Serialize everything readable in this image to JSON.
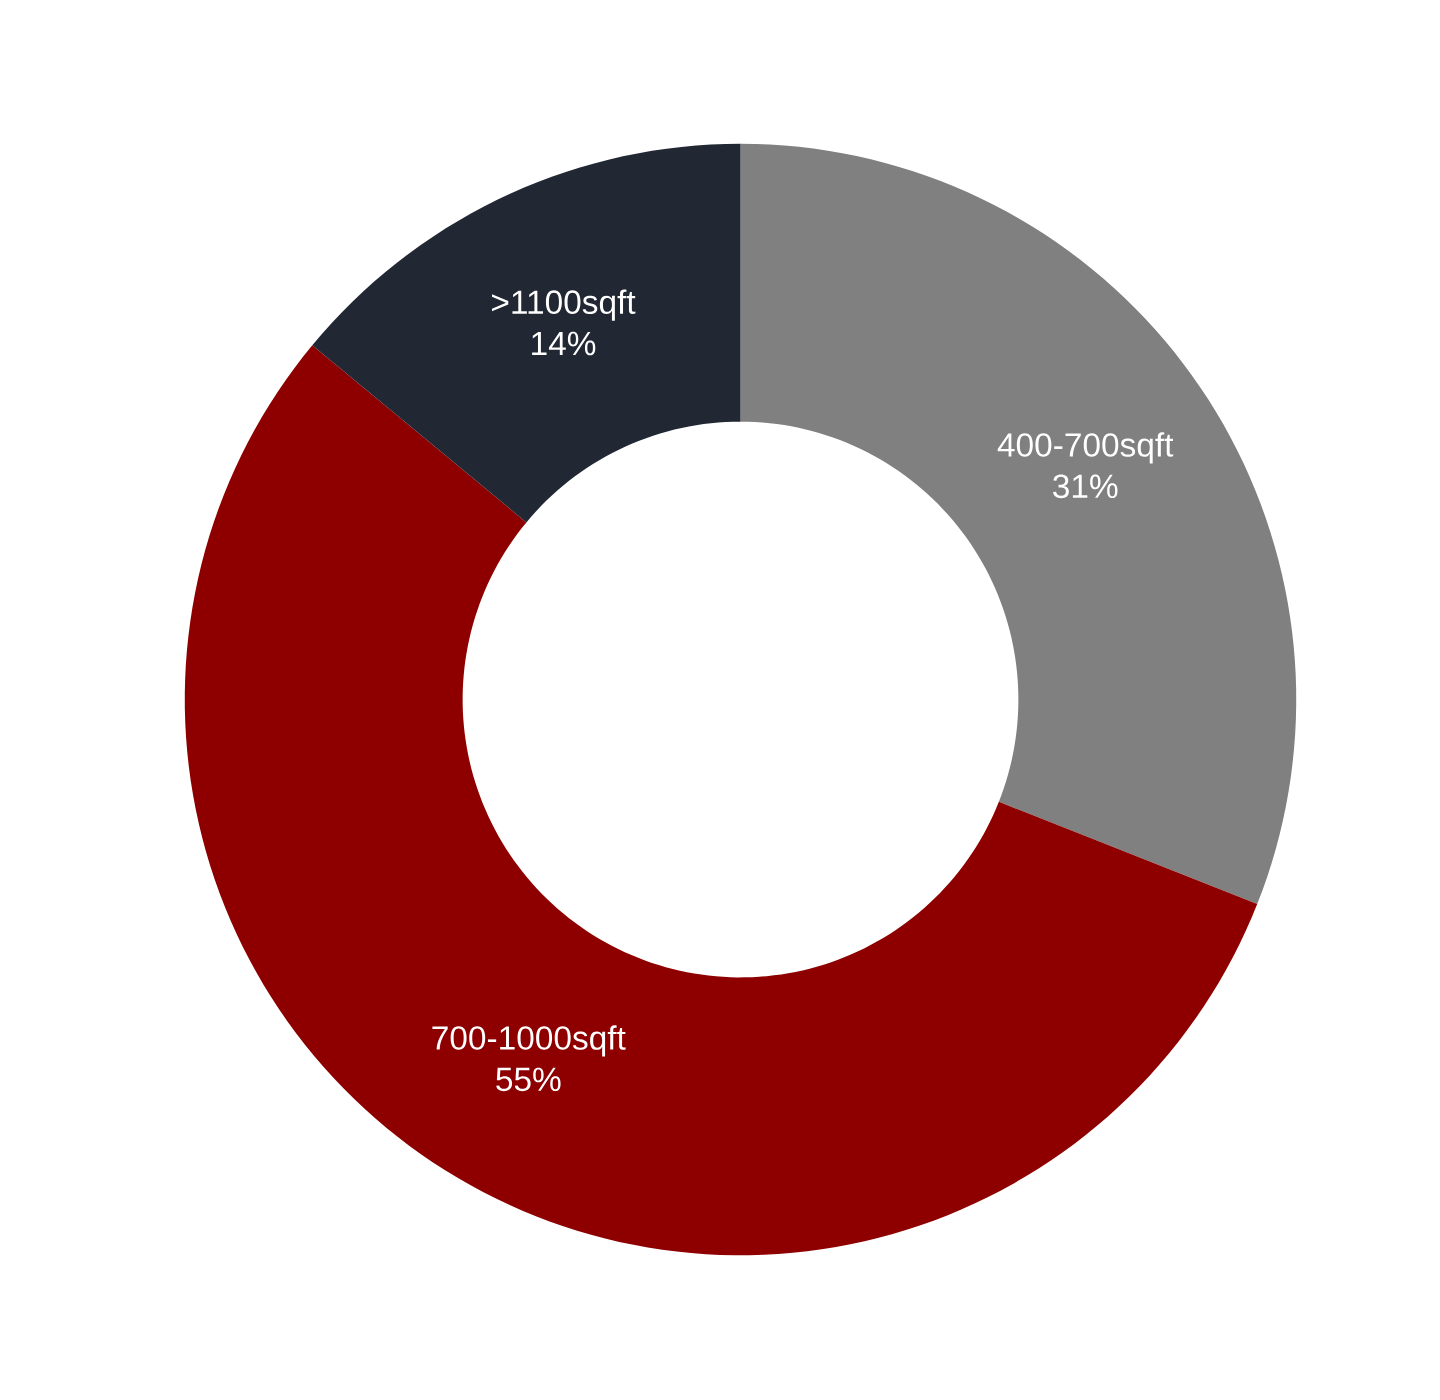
{
  "chart_data": {
    "type": "donut",
    "categories": [
      "400-700sqft",
      "700-1000sqft",
      ">1100sqft"
    ],
    "values": [
      31,
      55,
      14
    ],
    "colors": [
      "#808080",
      "#8e0000",
      "#212733"
    ],
    "value_labels": [
      "31%",
      "55%",
      "14%"
    ]
  }
}
